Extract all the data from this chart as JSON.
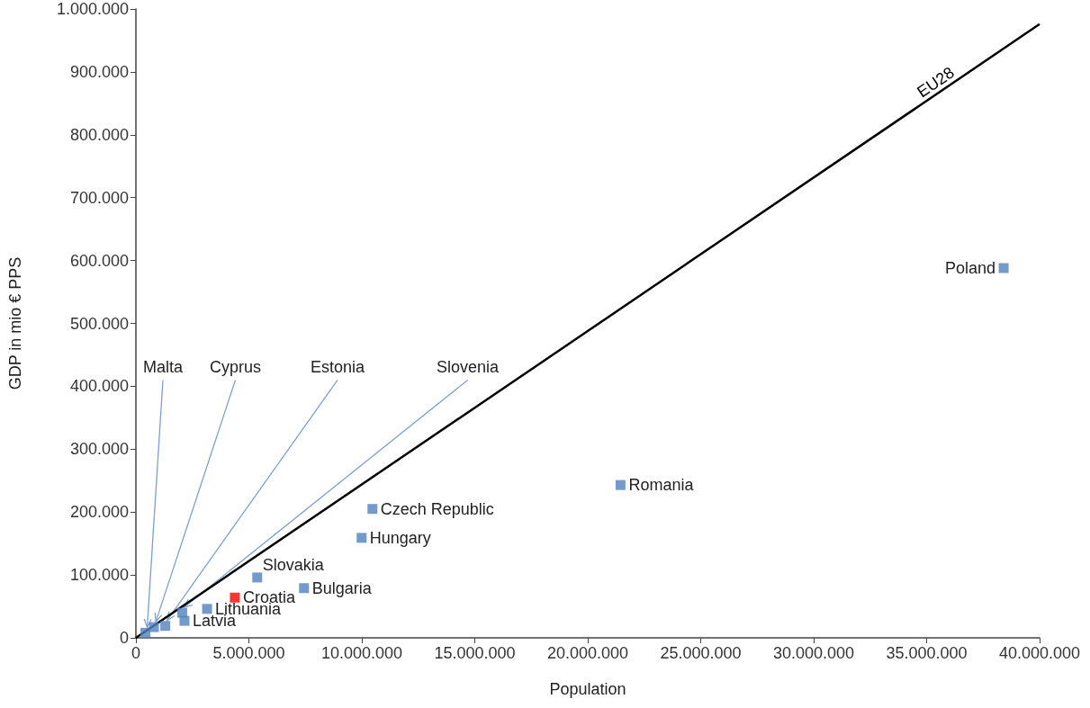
{
  "chart_data": {
    "type": "scatter",
    "xlabel": "Population",
    "ylabel": "GDP in mio € PPS",
    "xlim": [
      0,
      40000000
    ],
    "xticks": [
      0,
      {
        "value": 5000000,
        "label": "5.000.000"
      },
      {
        "value": 10000000,
        "label": "10.000.000"
      },
      {
        "value": 15000000,
        "label": "15.000.000"
      },
      {
        "value": 20000000,
        "label": "20.000.000"
      },
      {
        "value": 25000000,
        "label": "25.000.000"
      },
      {
        "value": 30000000,
        "label": "30.000.000"
      },
      {
        "value": 35000000,
        "label": "35.000.000"
      },
      {
        "value": 40000000,
        "label": "40.000.000"
      }
    ],
    "ylim": [
      0,
      1000000
    ],
    "yticks": [
      0,
      {
        "value": 100000,
        "label": "100.000"
      },
      {
        "value": 200000,
        "label": "200.000"
      },
      {
        "value": 300000,
        "label": "300.000"
      },
      {
        "value": 400000,
        "label": "400.000"
      },
      {
        "value": 500000,
        "label": "500.000"
      },
      {
        "value": 600000,
        "label": "600.000"
      },
      {
        "value": 700000,
        "label": "700.000"
      },
      {
        "value": 800000,
        "label": "800.000"
      },
      {
        "value": 900000,
        "label": "900.000"
      },
      {
        "value": 1000000,
        "label": "1.000.000"
      }
    ],
    "grid": false,
    "legend": false,
    "marker": "square",
    "series": [
      {
        "x": [
          420000,
          800000,
          1300000,
          2050000,
          2150000,
          3150000,
          4380000,
          5370000,
          7440000,
          9990000,
          10470000,
          21450000,
          38410000
        ],
        "values": [
          8000,
          17000,
          19000,
          40000,
          27000,
          46000,
          64000,
          96000,
          79000,
          159000,
          205000,
          243000,
          588000
        ],
        "color": "#4f81bd",
        "colors": [
          "#4f81bd",
          "#4f81bd",
          "#4f81bd",
          "#4f81bd",
          "#4f81bd",
          "#4f81bd",
          "#ff0000",
          "#4f81bd",
          "#4f81bd",
          "#4f81bd",
          "#4f81bd",
          "#4f81bd",
          "#4f81bd"
        ]
      },
      {
        "type": "line",
        "name": "EU28",
        "x": [
          0,
          40000000
        ],
        "values": [
          0,
          976000
        ],
        "color": "#000000",
        "marker": "none",
        "line_style": "solid"
      }
    ],
    "annotations": [
      {
        "text": "Malta",
        "x": 420000,
        "y": 8000
      },
      {
        "text": "Cyprus",
        "x": 800000,
        "y": 17000
      },
      {
        "text": "Estonia",
        "x": 1300000,
        "y": 19000
      },
      {
        "text": "Slovenia",
        "x": 2050000,
        "y": 40000
      },
      {
        "text": "Latvia",
        "x": 2150000,
        "y": 27000
      },
      {
        "text": "Lithuania",
        "x": 3150000,
        "y": 46000
      },
      {
        "text": "Croatia",
        "x": 4380000,
        "y": 64000
      },
      {
        "text": "Slovakia",
        "x": 5370000,
        "y": 96000
      },
      {
        "text": "Bulgaria",
        "x": 7440000,
        "y": 79000
      },
      {
        "text": "Hungary",
        "x": 9990000,
        "y": 159000
      },
      {
        "text": "Czech Republic",
        "x": 10470000,
        "y": 205000
      },
      {
        "text": "Romania",
        "x": 21450000,
        "y": 243000
      },
      {
        "text": "Poland",
        "x": 38410000,
        "y": 588000
      }
    ]
  }
}
